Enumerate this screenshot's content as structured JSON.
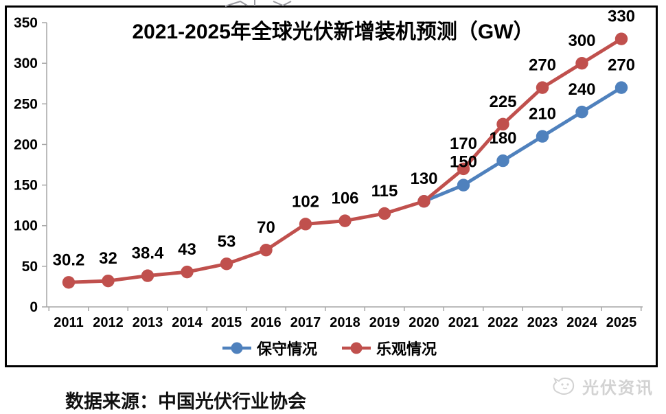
{
  "chart_data": {
    "type": "line",
    "title": "2021-2025年全球光伏新增装机预测（GW）",
    "categories": [
      "2011",
      "2012",
      "2013",
      "2014",
      "2015",
      "2016",
      "2017",
      "2018",
      "2019",
      "2020",
      "2021",
      "2022",
      "2023",
      "2024",
      "2025"
    ],
    "series": [
      {
        "key": "conservative",
        "name": "保守情况",
        "color": "#4f81bd",
        "values": [
          null,
          null,
          null,
          null,
          null,
          null,
          null,
          null,
          null,
          130,
          150,
          180,
          210,
          240,
          270
        ],
        "data_labels": [
          "",
          "",
          "",
          "",
          "",
          "",
          "",
          "",
          "",
          "",
          "150",
          "180",
          "210",
          "240",
          "270"
        ]
      },
      {
        "key": "optimistic",
        "name": "乐观情况",
        "color": "#c0504d",
        "values": [
          30.2,
          32,
          38.4,
          43,
          53,
          70,
          102,
          106,
          115,
          130,
          170,
          225,
          270,
          300,
          330
        ],
        "data_labels": [
          "30.2",
          "32",
          "38.4",
          "43",
          "53",
          "70",
          "102",
          "106",
          "115",
          "130",
          "170",
          "225",
          "270",
          "300",
          "330"
        ]
      }
    ],
    "ylim": [
      0,
      350
    ],
    "ytick_step": 50,
    "ytick_labels": [
      "0",
      "50",
      "100",
      "150",
      "200",
      "250",
      "300",
      "350"
    ],
    "legend_position": "bottom",
    "grid": false,
    "axis_color": "#a6a6a6",
    "label_color": "#000000"
  },
  "footer": {
    "source": "数据来源：中国光伏行业协会",
    "watermark": "光伏资讯"
  }
}
